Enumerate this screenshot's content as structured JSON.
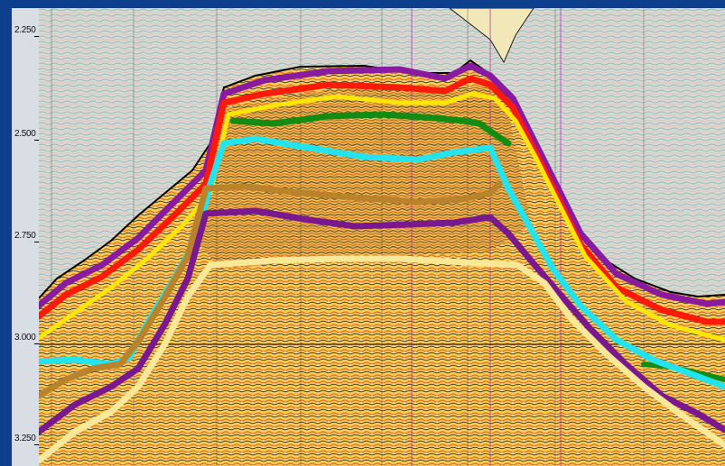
{
  "axis": {
    "labels": [
      "2.250",
      "2.500",
      "2.750",
      "3.000",
      "3.250"
    ],
    "values": [
      2.25,
      2.5,
      2.75,
      3.0,
      3.25
    ]
  },
  "colors": {
    "frame": "#0e3f8c",
    "axis_strip": "#d9dde4",
    "overburden": "#cfdbd6",
    "body_fill": "#f6c84a",
    "horizons": [
      "#8a1aa0",
      "#ff1a0a",
      "#ffe600",
      "#128c12",
      "#22e4f0",
      "#b8832a",
      "#7a1890",
      "#f8e898"
    ]
  },
  "horizons": [
    {
      "color_index": 0,
      "icon": "purple-horizon"
    },
    {
      "color_index": 1,
      "icon": "red-horizon"
    },
    {
      "color_index": 2,
      "icon": "yellow-horizon"
    },
    {
      "color_index": 3,
      "icon": "green-horizon"
    },
    {
      "color_index": 4,
      "icon": "cyan-horizon"
    },
    {
      "color_index": 5,
      "icon": "brown-horizon"
    },
    {
      "color_index": 6,
      "icon": "purple-horizon-lower"
    },
    {
      "color_index": 7,
      "icon": "pale-yellow-horizon"
    }
  ]
}
